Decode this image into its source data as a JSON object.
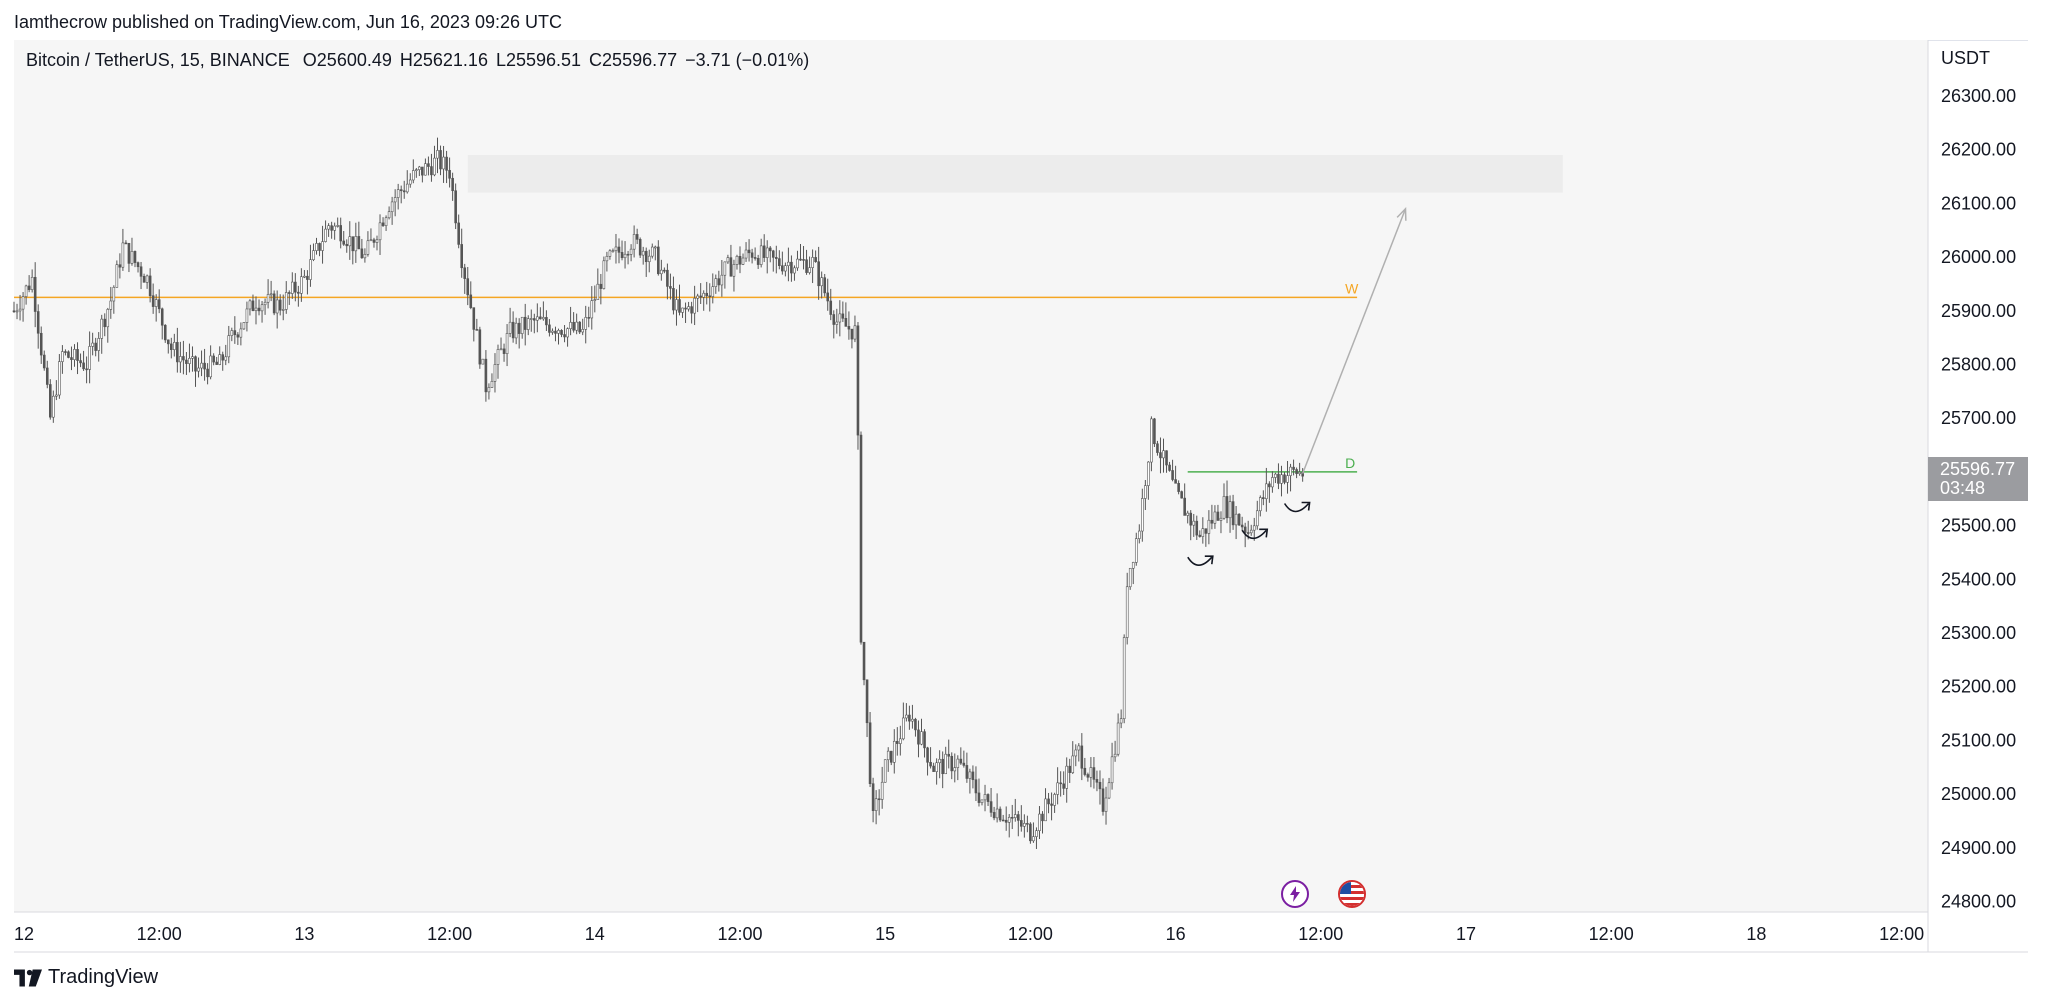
{
  "caption": "Iamthecrow published on TradingView.com, Jun 16, 2023 09:26 UTC",
  "legend": {
    "symbol": "Bitcoin / TetherUS, 15, BINANCE",
    "open": "O25600.49",
    "high": "H25621.16",
    "low": "L25596.51",
    "close": "C25596.77",
    "change": "−3.71 (−0.01%)"
  },
  "price_tag": {
    "price": "25596.77",
    "countdown": "03:48"
  },
  "footer": {
    "brand": "TradingView"
  },
  "colors": {
    "candle": "#555555",
    "weekly_level": "#f5a623",
    "daily_level": "#4caf50",
    "zone": "#ececec",
    "arrow": "#b0b0b0",
    "pane_bg": "#f6f6f6"
  },
  "icons": [
    "lightning-event-icon",
    "us-flag-event-icon",
    "tradingview-logo-icon"
  ],
  "chart_data": {
    "type": "candlestick",
    "title": "",
    "currency_label": "USDT",
    "ylim": [
      24760,
      26360
    ],
    "y_ticks": [
      "26300.00",
      "26200.00",
      "26100.00",
      "26000.00",
      "25900.00",
      "25800.00",
      "25700.00",
      "25600.00",
      "25500.00",
      "25400.00",
      "25300.00",
      "25200.00",
      "25100.00",
      "25000.00",
      "24900.00",
      "24800.00"
    ],
    "x_ticks": [
      {
        "label": "12",
        "t": 0
      },
      {
        "label": "12:00",
        "t": 12
      },
      {
        "label": "13",
        "t": 24
      },
      {
        "label": "12:00",
        "t": 36
      },
      {
        "label": "14",
        "t": 48
      },
      {
        "label": "12:00",
        "t": 60
      },
      {
        "label": "15",
        "t": 72
      },
      {
        "label": "12:00",
        "t": 84
      },
      {
        "label": "16",
        "t": 96
      },
      {
        "label": "12:00",
        "t": 108
      },
      {
        "label": "17",
        "t": 120
      },
      {
        "label": "12:00",
        "t": 132
      },
      {
        "label": "18",
        "t": 144
      },
      {
        "label": "12:00",
        "t": 156
      }
    ],
    "price_path": [
      [
        0,
        25900
      ],
      [
        1.5,
        25960
      ],
      [
        3,
        25700
      ],
      [
        4,
        25820
      ],
      [
        6,
        25800
      ],
      [
        8,
        25920
      ],
      [
        9,
        26020
      ],
      [
        11,
        25960
      ],
      [
        13,
        25830
      ],
      [
        15,
        25790
      ],
      [
        17,
        25800
      ],
      [
        18,
        25850
      ],
      [
        20,
        25920
      ],
      [
        22,
        25910
      ],
      [
        24,
        25960
      ],
      [
        26,
        26060
      ],
      [
        27,
        26050
      ],
      [
        29,
        26000
      ],
      [
        31,
        26100
      ],
      [
        33,
        26150
      ],
      [
        35,
        26180
      ],
      [
        36,
        26160
      ],
      [
        37,
        26000
      ],
      [
        39,
        25760
      ],
      [
        41,
        25860
      ],
      [
        43,
        25880
      ],
      [
        45,
        25870
      ],
      [
        47,
        25860
      ],
      [
        49,
        25990
      ],
      [
        51,
        26030
      ],
      [
        53,
        26000
      ],
      [
        55,
        25890
      ],
      [
        57,
        25930
      ],
      [
        59,
        25980
      ],
      [
        61,
        26010
      ],
      [
        63,
        25990
      ],
      [
        66,
        25990
      ],
      [
        68,
        25880
      ],
      [
        69.6,
        25860
      ],
      [
        70,
        25300
      ],
      [
        71,
        24950
      ],
      [
        72,
        25050
      ],
      [
        74,
        25150
      ],
      [
        76,
        25050
      ],
      [
        78,
        25060
      ],
      [
        80,
        24990
      ],
      [
        82,
        24960
      ],
      [
        84,
        24930
      ],
      [
        86,
        25000
      ],
      [
        88,
        25080
      ],
      [
        90,
        24980
      ],
      [
        91.5,
        25150
      ],
      [
        92,
        25400
      ],
      [
        93,
        25500
      ],
      [
        94,
        25680
      ],
      [
        95,
        25620
      ],
      [
        96,
        25560
      ],
      [
        98,
        25480
      ],
      [
        100,
        25540
      ],
      [
        102,
        25490
      ],
      [
        104,
        25590
      ],
      [
        106,
        25600
      ],
      [
        106.5,
        25597
      ]
    ],
    "levels": [
      {
        "label": "W",
        "price": 25925,
        "t_start": 0,
        "t_end": 111
      },
      {
        "label": "D",
        "price": 25600,
        "t_start": 97,
        "t_end": 111
      }
    ],
    "zone": {
      "t_start": 37.5,
      "t_end": 128,
      "price_low": 26120,
      "price_high": 26190
    },
    "projection": {
      "from": [
        106.5,
        25597
      ],
      "to": [
        115,
        26090
      ]
    },
    "annotations": [
      {
        "type": "curved-arrow",
        "t": 98,
        "price": 25430
      },
      {
        "type": "curved-arrow",
        "t": 102.5,
        "price": 25480
      },
      {
        "type": "curved-arrow",
        "t": 106,
        "price": 25530
      }
    ]
  }
}
